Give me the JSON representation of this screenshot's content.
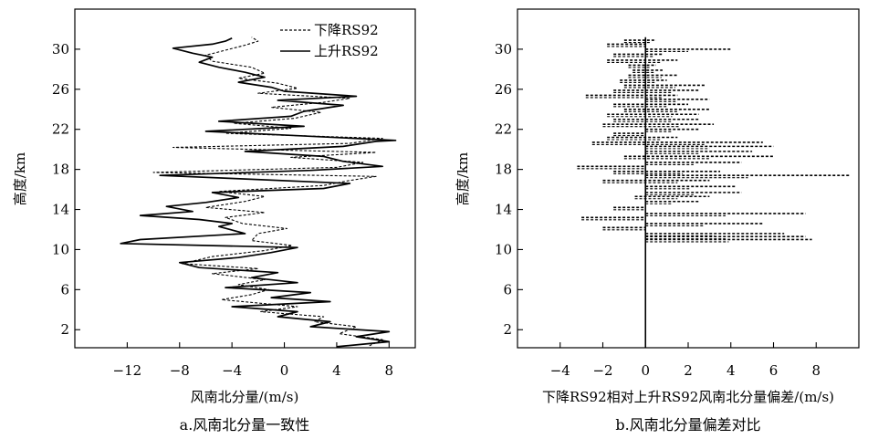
{
  "chart_data": [
    {
      "type": "line",
      "caption": "a.风南北分量一致性",
      "xlabel": "风南北分量/(m/s)",
      "ylabel": "高度/km",
      "xlim": [
        -16,
        10
      ],
      "ylim": [
        0.2,
        34
      ],
      "x_ticks": [
        -12,
        -8,
        -4,
        0,
        4,
        8
      ],
      "y_ticks": [
        2,
        6,
        10,
        14,
        18,
        22,
        26,
        30
      ],
      "x_tick_labels": [
        "−12",
        "−8",
        "−4",
        "0",
        "4",
        "8"
      ],
      "y_tick_labels": [
        "2",
        "6",
        "10",
        "14",
        "18",
        "22",
        "26",
        "30"
      ],
      "legend": {
        "position": "top-right"
      },
      "series": [
        {
          "name": "下降RS92",
          "style": "dashed",
          "points": [
            [
              6.5,
              0.4
            ],
            [
              7.5,
              1.0
            ],
            [
              4.2,
              1.6
            ],
            [
              5.5,
              2.3
            ],
            [
              2.3,
              2.8
            ],
            [
              3.0,
              3.3
            ],
            [
              -1.8,
              3.8
            ],
            [
              1.0,
              4.3
            ],
            [
              -4.8,
              5.0
            ],
            [
              -2.5,
              5.5
            ],
            [
              -1.2,
              6.0
            ],
            [
              -3.5,
              6.5
            ],
            [
              -1.5,
              7.0
            ],
            [
              -5.5,
              7.6
            ],
            [
              -2.0,
              8.1
            ],
            [
              -7.8,
              8.6
            ],
            [
              -5.5,
              9.3
            ],
            [
              -1.5,
              9.9
            ],
            [
              0.6,
              10.4
            ],
            [
              -2.5,
              10.9
            ],
            [
              -2.0,
              11.6
            ],
            [
              0.2,
              12.1
            ],
            [
              -3.2,
              12.6
            ],
            [
              -4.5,
              13.2
            ],
            [
              -1.5,
              13.7
            ],
            [
              -6.0,
              14.2
            ],
            [
              -3.0,
              14.8
            ],
            [
              -1.5,
              15.3
            ],
            [
              -5.0,
              15.8
            ],
            [
              3.0,
              16.4
            ],
            [
              5.0,
              16.9
            ],
            [
              7.0,
              17.3
            ],
            [
              -10.0,
              17.7
            ],
            [
              4.0,
              18.2
            ],
            [
              6.0,
              18.7
            ],
            [
              0.5,
              19.2
            ],
            [
              7.0,
              19.7
            ],
            [
              -8.5,
              20.2
            ],
            [
              5.0,
              20.6
            ],
            [
              7.5,
              21.1
            ],
            [
              -4.5,
              21.6
            ],
            [
              0.5,
              22.1
            ],
            [
              -3.8,
              22.6
            ],
            [
              0.8,
              23.1
            ],
            [
              2.8,
              23.7
            ],
            [
              -1.0,
              24.2
            ],
            [
              3.0,
              24.7
            ],
            [
              5.0,
              25.1
            ],
            [
              -2.0,
              25.6
            ],
            [
              1.0,
              26.1
            ],
            [
              -0.5,
              26.6
            ],
            [
              -3.5,
              27.1
            ],
            [
              -1.5,
              27.6
            ],
            [
              -2.5,
              28.2
            ],
            [
              -5.5,
              28.8
            ],
            [
              -6.0,
              29.4
            ],
            [
              -4.5,
              29.9
            ],
            [
              -3.0,
              30.4
            ],
            [
              -2.0,
              30.8
            ],
            [
              -2.5,
              31.2
            ]
          ]
        },
        {
          "name": "上升RS92",
          "style": "solid",
          "points": [
            [
              4.0,
              0.3
            ],
            [
              8.0,
              0.8
            ],
            [
              5.5,
              1.3
            ],
            [
              8.0,
              1.8
            ],
            [
              2.0,
              2.3
            ],
            [
              3.5,
              2.8
            ],
            [
              -0.5,
              3.3
            ],
            [
              1.0,
              3.8
            ],
            [
              -4.0,
              4.3
            ],
            [
              3.5,
              4.8
            ],
            [
              -1.0,
              5.2
            ],
            [
              2.0,
              5.7
            ],
            [
              -4.5,
              6.2
            ],
            [
              1.0,
              6.7
            ],
            [
              -2.5,
              7.2
            ],
            [
              -0.5,
              7.7
            ],
            [
              -6.5,
              8.2
            ],
            [
              -8.0,
              8.7
            ],
            [
              -3.5,
              9.2
            ],
            [
              -1.0,
              9.7
            ],
            [
              1.0,
              10.2
            ],
            [
              -12.5,
              10.6
            ],
            [
              -11.0,
              11.0
            ],
            [
              -3.0,
              11.6
            ],
            [
              -5.0,
              12.3
            ],
            [
              -4.0,
              12.6
            ],
            [
              -6.5,
              13.0
            ],
            [
              -11.0,
              13.4
            ],
            [
              -7.0,
              13.8
            ],
            [
              -9.0,
              14.3
            ],
            [
              -6.0,
              14.7
            ],
            [
              -3.5,
              15.2
            ],
            [
              -5.5,
              15.7
            ],
            [
              3.0,
              16.1
            ],
            [
              5.0,
              16.6
            ],
            [
              -4.0,
              17.1
            ],
            [
              -9.5,
              17.4
            ],
            [
              2.0,
              17.9
            ],
            [
              7.5,
              18.3
            ],
            [
              4.5,
              18.8
            ],
            [
              3.0,
              19.3
            ],
            [
              -3.0,
              19.8
            ],
            [
              4.5,
              20.3
            ],
            [
              7.0,
              20.8
            ],
            [
              8.5,
              20.9
            ],
            [
              0.5,
              21.4
            ],
            [
              -6.0,
              21.8
            ],
            [
              1.5,
              22.3
            ],
            [
              -5.0,
              22.8
            ],
            [
              0.5,
              23.3
            ],
            [
              1.5,
              23.8
            ],
            [
              4.5,
              24.4
            ],
            [
              -0.5,
              24.9
            ],
            [
              5.5,
              25.3
            ],
            [
              0.0,
              25.8
            ],
            [
              -1.0,
              26.2
            ],
            [
              -3.5,
              26.7
            ],
            [
              -1.5,
              27.2
            ],
            [
              -3.0,
              27.7
            ],
            [
              -5.0,
              28.2
            ],
            [
              -6.5,
              28.7
            ],
            [
              -5.5,
              29.2
            ],
            [
              -7.0,
              29.6
            ],
            [
              -8.5,
              30.1
            ],
            [
              -5.5,
              30.5
            ],
            [
              -4.5,
              30.8
            ],
            [
              -4.0,
              31.1
            ]
          ]
        }
      ]
    },
    {
      "type": "line",
      "caption": "b.风南北分量偏差对比",
      "xlabel": "下降RS92相对上升RS92风南北分量偏差/(m/s)",
      "ylabel": "高度/km",
      "xlim": [
        -6,
        10
      ],
      "ylim": [
        0.2,
        34
      ],
      "x_ticks": [
        -4,
        -2,
        0,
        2,
        4,
        6,
        8
      ],
      "y_ticks": [
        2,
        6,
        10,
        14,
        18,
        22,
        26,
        30
      ],
      "x_tick_labels": [
        "−4",
        "−2",
        "0",
        "2",
        "4",
        "6",
        "8"
      ],
      "y_tick_labels": [
        "2",
        "6",
        "10",
        "14",
        "18",
        "22",
        "26",
        "30"
      ],
      "reference_line_x": 0,
      "bias_spans": [
        [
          11.0,
          0,
          7.8
        ],
        [
          11.3,
          0,
          7.5
        ],
        [
          11.6,
          0,
          6.5
        ],
        [
          12.2,
          -2.0,
          0
        ],
        [
          12.6,
          0,
          5.5
        ],
        [
          13.2,
          -3.0,
          0
        ],
        [
          13.6,
          0,
          7.5
        ],
        [
          14.2,
          -1.5,
          0
        ],
        [
          14.8,
          0,
          2.5
        ],
        [
          15.3,
          -0.5,
          3.0
        ],
        [
          15.7,
          0,
          4.5
        ],
        [
          16.3,
          0,
          4.2
        ],
        [
          16.9,
          -2.0,
          3.0
        ],
        [
          17.4,
          0,
          9.6
        ],
        [
          17.8,
          -1.5,
          3.5
        ],
        [
          18.3,
          -3.2,
          0
        ],
        [
          18.7,
          0,
          4.5
        ],
        [
          19.3,
          -1.0,
          6.0
        ],
        [
          19.8,
          0,
          5.0
        ],
        [
          20.3,
          0,
          6.0
        ],
        [
          20.7,
          -2.5,
          5.5
        ],
        [
          21.2,
          -1.8,
          1.5
        ],
        [
          21.6,
          -1.5,
          0
        ],
        [
          22.0,
          0,
          2.5
        ],
        [
          22.5,
          -2.0,
          3.2
        ],
        [
          23.0,
          -1.5,
          2.5
        ],
        [
          23.5,
          -1.8,
          2.5
        ],
        [
          24.0,
          -1.0,
          3.0
        ],
        [
          24.5,
          -1.5,
          2.0
        ],
        [
          25.0,
          0,
          3.0
        ],
        [
          25.4,
          -2.8,
          1.5
        ],
        [
          25.9,
          -1.5,
          2.5
        ],
        [
          26.4,
          -1.0,
          2.8
        ],
        [
          26.9,
          -1.2,
          1.0
        ],
        [
          27.4,
          -0.8,
          1.5
        ],
        [
          27.9,
          -0.6,
          0.8
        ],
        [
          28.4,
          -0.8,
          0.5
        ],
        [
          28.9,
          -1.8,
          1.5
        ],
        [
          29.5,
          -1.5,
          0.8
        ],
        [
          30.0,
          0,
          4.0
        ],
        [
          30.5,
          -1.8,
          0
        ],
        [
          30.9,
          -1.0,
          0.5
        ]
      ]
    }
  ]
}
